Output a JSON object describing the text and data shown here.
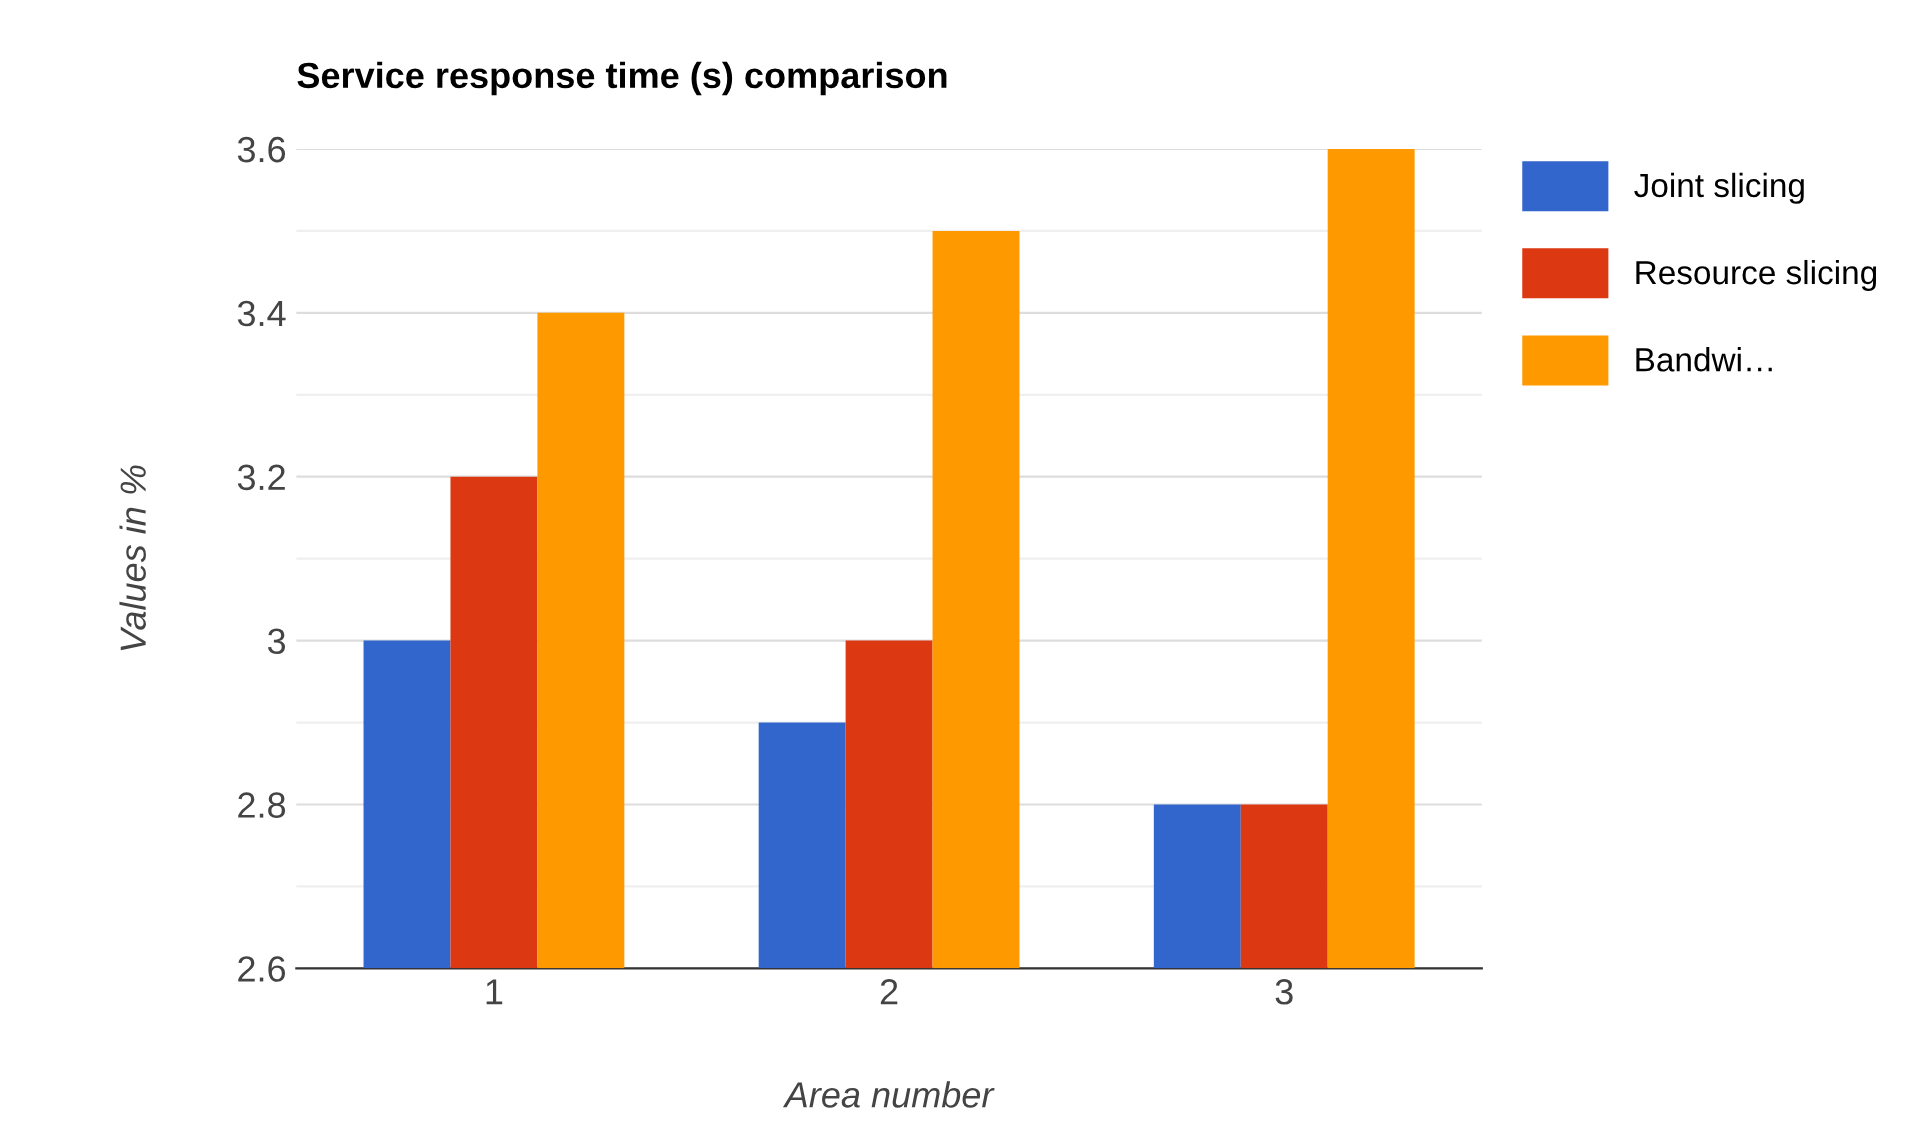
{
  "chart_data": {
    "type": "bar",
    "title": "Service response time (s) comparison",
    "xlabel": "Area number",
    "ylabel": "Values in %",
    "categories": [
      "1",
      "2",
      "3"
    ],
    "series": [
      {
        "name": "Joint slicing",
        "color": "#3366cc",
        "values": [
          3.0,
          2.9,
          2.8
        ]
      },
      {
        "name": "Resource slicing",
        "color": "#dc3912",
        "values": [
          3.2,
          3.0,
          2.8
        ]
      },
      {
        "name": "Bandwi…",
        "color": "#ff9900",
        "values": [
          3.4,
          3.5,
          3.6
        ]
      }
    ],
    "ylim": [
      2.6,
      3.6
    ],
    "yticks": [
      {
        "value": 2.6,
        "label": "2.6"
      },
      {
        "value": 2.7,
        "label": null
      },
      {
        "value": 2.8,
        "label": "2.8"
      },
      {
        "value": 2.9,
        "label": null
      },
      {
        "value": 3.0,
        "label": "3"
      },
      {
        "value": 3.1,
        "label": null
      },
      {
        "value": 3.2,
        "label": "3.2"
      },
      {
        "value": 3.3,
        "label": null
      },
      {
        "value": 3.4,
        "label": "3.4"
      },
      {
        "value": 3.5,
        "label": null
      },
      {
        "value": 3.6,
        "label": "3.6"
      }
    ],
    "grid": "y",
    "legend": "top right"
  }
}
